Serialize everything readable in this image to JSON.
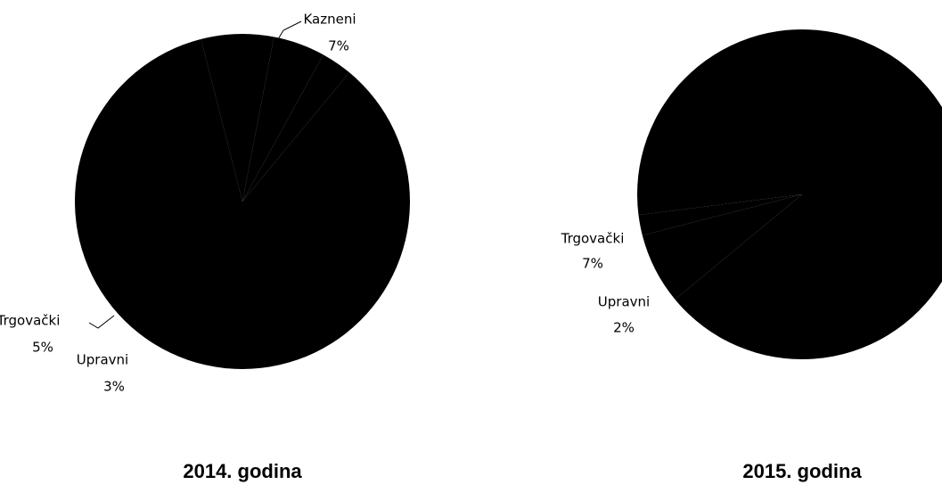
{
  "chart_data": [
    {
      "type": "pie",
      "title": "2014. godina",
      "categories": [
        "Kazneni",
        "Trgovački",
        "Upravni",
        null
      ],
      "values": [
        7,
        5,
        3,
        85
      ],
      "value_labels": [
        "7%",
        "5%",
        "3%",
        null
      ],
      "color": "#000000"
    },
    {
      "type": "pie",
      "title": "2015. godina",
      "categories": [
        "Trgovački",
        "Upravni",
        null
      ],
      "values": [
        7,
        2,
        91
      ],
      "value_labels": [
        "7%",
        "2%",
        null
      ],
      "color": "#000000"
    }
  ]
}
